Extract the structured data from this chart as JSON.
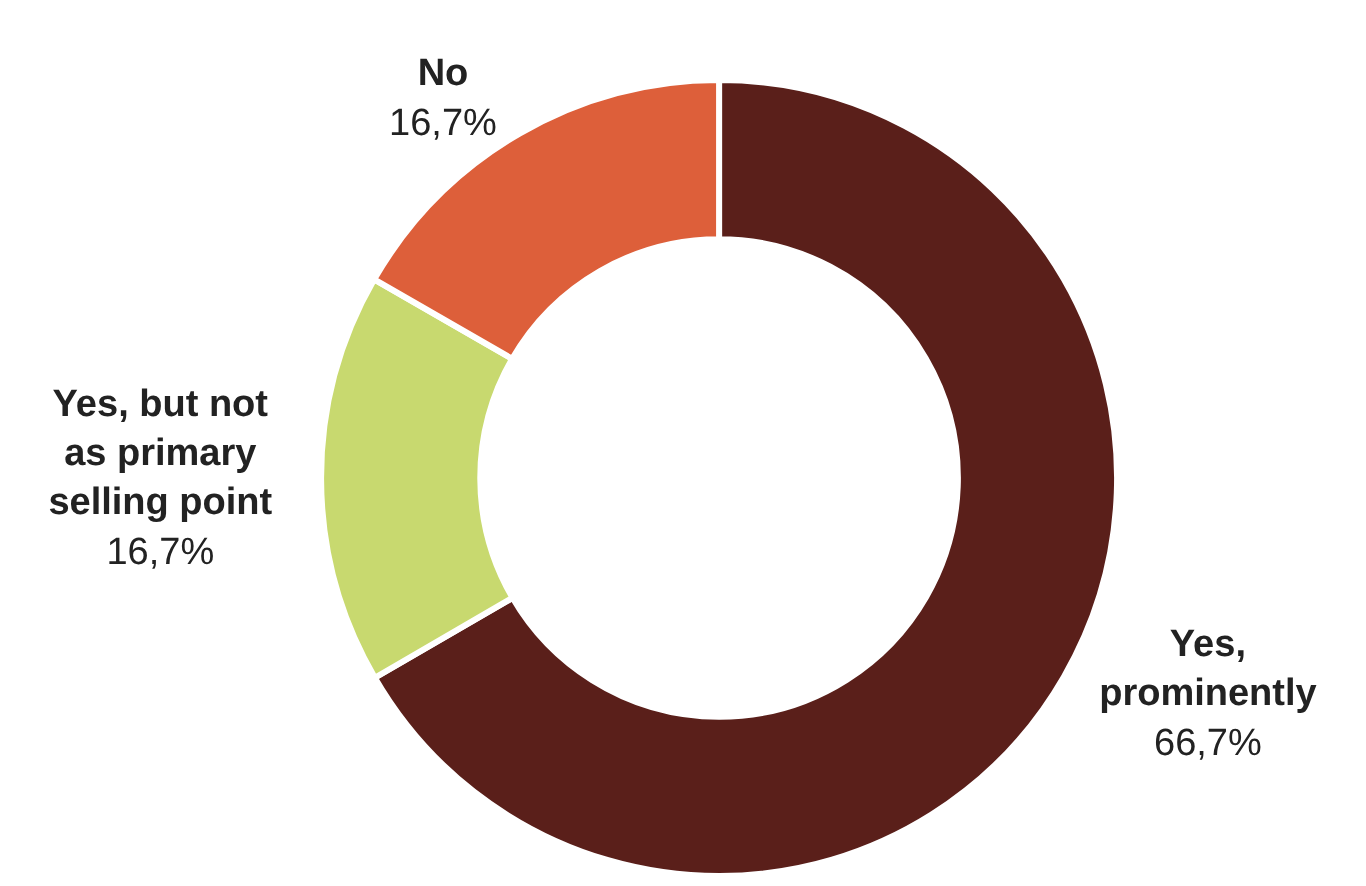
{
  "chart_data": {
    "type": "donut",
    "categories": [
      "Yes, prominently",
      "Yes, but not as primary selling point",
      "No"
    ],
    "values": [
      66.7,
      16.7,
      16.7
    ],
    "value_labels": [
      "66,7%",
      "16,7%",
      "16,7%"
    ],
    "colors": [
      "#5a1f1a",
      "#c8d96f",
      "#dd5f3a"
    ],
    "legend": false
  }
}
